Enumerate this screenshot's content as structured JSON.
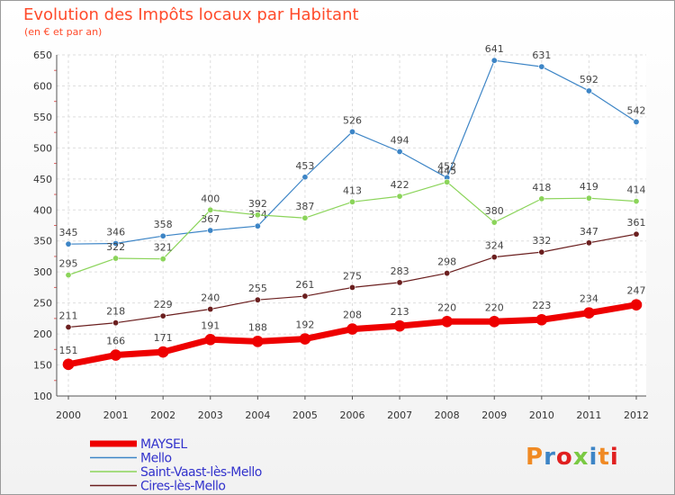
{
  "chart_data": {
    "type": "line",
    "title": "Evolution des Impôts locaux par Habitant",
    "subtitle": "(en € et par an)",
    "xlabel": "",
    "ylabel": "",
    "ylim": [
      100,
      650
    ],
    "yticks": [
      100,
      150,
      200,
      250,
      300,
      350,
      400,
      450,
      500,
      550,
      600,
      650
    ],
    "grid": true,
    "legend_position": "bottom-left",
    "x": [
      "2000",
      "2001",
      "2002",
      "2003",
      "2004",
      "2005",
      "2006",
      "2007",
      "2008",
      "2009",
      "2010",
      "2011",
      "2012"
    ],
    "series": [
      {
        "name": "Mello",
        "color": "#3d85c6",
        "values": [
          345,
          346,
          358,
          367,
          374,
          453,
          526,
          494,
          452,
          641,
          631,
          592,
          542
        ]
      },
      {
        "name": "Saint-Vaast-lès-Mello",
        "color": "#8bd45a",
        "values": [
          295,
          322,
          321,
          400,
          392,
          387,
          413,
          422,
          445,
          380,
          418,
          419,
          414
        ]
      },
      {
        "name": "Cires-lès-Mello",
        "color": "#6b1f1f",
        "values": [
          211,
          218,
          229,
          240,
          255,
          261,
          275,
          283,
          298,
          324,
          332,
          347,
          361
        ]
      },
      {
        "name": "MAYSEL",
        "color": "#ee0000",
        "values": [
          151,
          166,
          171,
          191,
          188,
          192,
          208,
          213,
          220,
          220,
          223,
          234,
          247
        ]
      }
    ],
    "legend_order": [
      "MAYSEL",
      "Mello",
      "Saint-Vaast-lès-Mello",
      "Cires-lès-Mello"
    ]
  },
  "brand": {
    "logo_text": "Proxiti"
  },
  "colors": {
    "title": "#ff4b2b",
    "axis_text": "#333333",
    "grid": "#dedede",
    "legend_text": "#3333cc"
  }
}
